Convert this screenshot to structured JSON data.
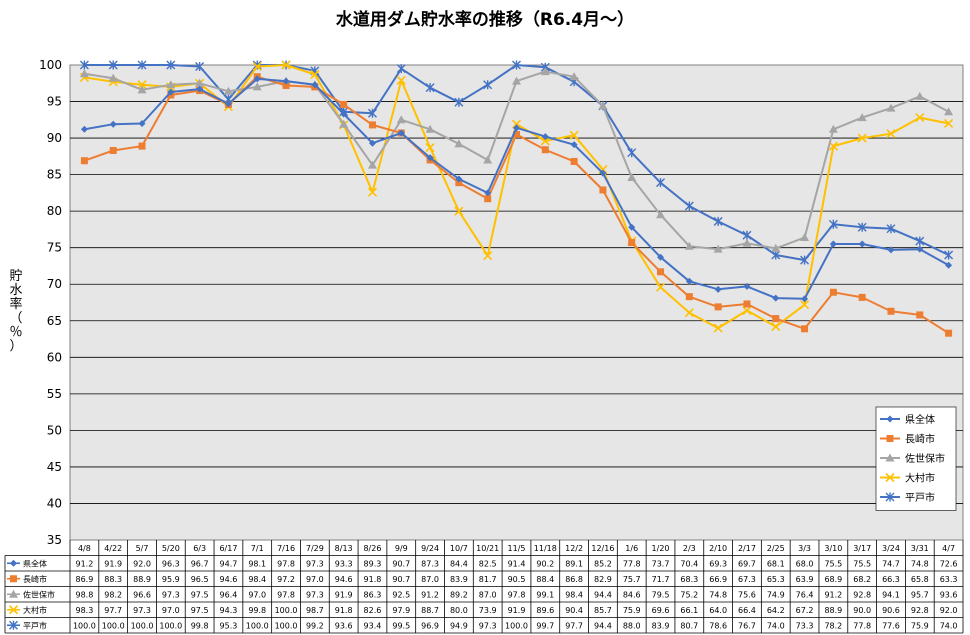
{
  "chart_data": {
    "type": "line",
    "title": "水道用ダム貯水率の推移（R6.4月～）",
    "ylabel": "貯水率（％）",
    "ylim": [
      35,
      100
    ],
    "yticks": [
      35,
      40,
      45,
      50,
      55,
      60,
      65,
      70,
      75,
      80,
      85,
      90,
      95,
      100
    ],
    "grid": true,
    "legend_position": "right",
    "categories": [
      "4/8",
      "4/22",
      "5/7",
      "5/20",
      "6/3",
      "6/17",
      "7/1",
      "7/16",
      "7/29",
      "8/13",
      "8/26",
      "9/9",
      "9/24",
      "10/7",
      "10/21",
      "11/5",
      "11/18",
      "12/2",
      "12/16",
      "1/6",
      "1/20",
      "2/3",
      "2/10",
      "2/17",
      "2/25",
      "3/3",
      "3/10",
      "3/17",
      "3/24",
      "3/31",
      "4/7"
    ],
    "series": [
      {
        "name": "県全体",
        "color": "#4472c4",
        "marker": "diamond",
        "values": [
          91.2,
          91.9,
          92.0,
          96.3,
          96.7,
          94.7,
          98.1,
          97.8,
          97.3,
          93.3,
          89.3,
          90.7,
          87.3,
          84.4,
          82.5,
          91.4,
          90.2,
          89.1,
          85.2,
          77.8,
          73.7,
          70.4,
          69.3,
          69.7,
          68.1,
          68.0,
          75.5,
          75.5,
          74.7,
          74.8,
          72.6
        ]
      },
      {
        "name": "長崎市",
        "color": "#ed7d31",
        "marker": "square",
        "values": [
          86.9,
          88.3,
          88.9,
          95.9,
          96.5,
          94.6,
          98.4,
          97.2,
          97.0,
          94.6,
          91.8,
          90.7,
          87.0,
          83.9,
          81.7,
          90.5,
          88.4,
          86.8,
          82.9,
          75.7,
          71.7,
          68.3,
          66.9,
          67.3,
          65.3,
          63.9,
          68.9,
          68.2,
          66.3,
          65.8,
          63.3
        ]
      },
      {
        "name": "佐世保市",
        "color": "#a5a5a5",
        "marker": "triangle",
        "values": [
          98.8,
          98.2,
          96.6,
          97.3,
          97.5,
          96.4,
          97.0,
          97.8,
          97.3,
          91.9,
          86.3,
          92.5,
          91.2,
          89.2,
          87.0,
          97.8,
          99.1,
          98.4,
          94.4,
          84.6,
          79.5,
          75.2,
          74.8,
          75.6,
          74.9,
          76.4,
          91.2,
          92.8,
          94.1,
          95.7,
          93.6
        ]
      },
      {
        "name": "大村市",
        "color": "#ffc000",
        "marker": "x",
        "values": [
          98.3,
          97.7,
          97.3,
          97.0,
          97.5,
          94.3,
          99.8,
          100.0,
          98.7,
          91.8,
          82.6,
          97.9,
          88.7,
          80.0,
          73.9,
          91.9,
          89.6,
          90.4,
          85.7,
          75.9,
          69.6,
          66.1,
          64.0,
          66.4,
          64.2,
          67.2,
          88.9,
          90.0,
          90.6,
          92.8,
          92.0
        ]
      },
      {
        "name": "平戸市",
        "color": "#4472c4",
        "marker": "star",
        "values": [
          100.0,
          100.0,
          100.0,
          100.0,
          99.8,
          95.3,
          100.0,
          100.0,
          99.2,
          93.6,
          93.4,
          99.5,
          96.9,
          94.9,
          97.3,
          100.0,
          99.7,
          97.7,
          94.4,
          88.0,
          83.9,
          80.7,
          78.6,
          76.7,
          74.0,
          73.3,
          78.2,
          77.8,
          77.6,
          75.9,
          74.0
        ]
      }
    ]
  }
}
